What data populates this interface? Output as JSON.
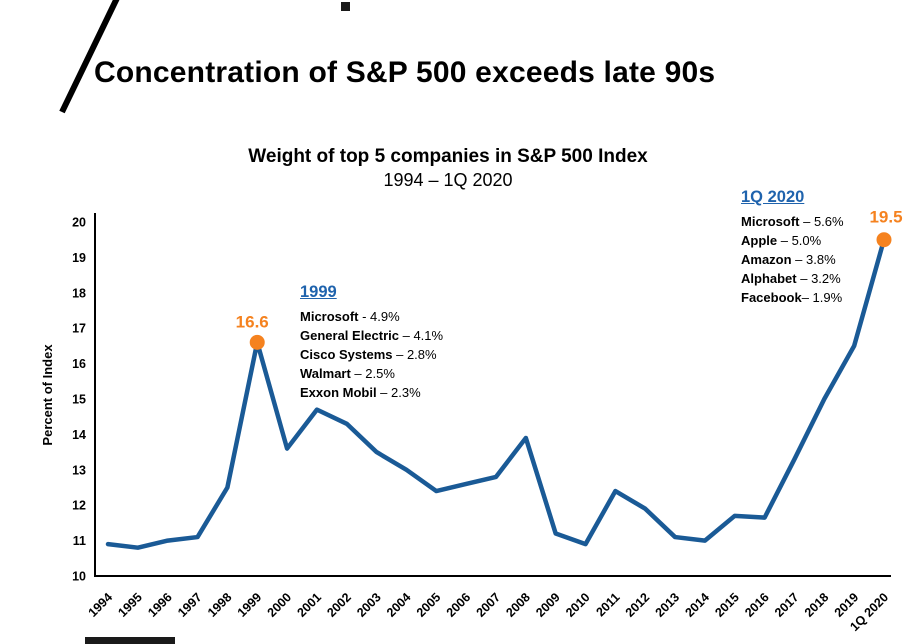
{
  "page": {
    "title": "Concentration of S&P 500 exceeds late 90s"
  },
  "chart_data": {
    "type": "line",
    "title": "Weight of top 5 companies in S&P 500 Index",
    "subtitle": "1994 – 1Q 2020",
    "ylabel": "Percent of Index",
    "ylim": [
      10,
      20
    ],
    "yticks": [
      10,
      11,
      12,
      13,
      14,
      15,
      16,
      17,
      18,
      19,
      20
    ],
    "categories": [
      "1994",
      "1995",
      "1996",
      "1997",
      "1998",
      "1999",
      "2000",
      "2001",
      "2002",
      "2003",
      "2004",
      "2005",
      "2006",
      "2007",
      "2008",
      "2009",
      "2010",
      "2011",
      "2012",
      "2013",
      "2014",
      "2015",
      "2016",
      "2017",
      "2018",
      "2019",
      "1Q 2020"
    ],
    "values": [
      10.9,
      10.8,
      11.0,
      11.1,
      12.5,
      16.6,
      13.6,
      14.7,
      14.3,
      13.5,
      13.0,
      12.4,
      12.6,
      12.8,
      13.9,
      11.2,
      10.9,
      12.4,
      11.9,
      11.1,
      11.0,
      11.7,
      11.65,
      13.3,
      15.0,
      16.5,
      19.5
    ],
    "line_color": "#1a5a96",
    "highlight_color": "#f5821f",
    "heading_color": "#1f63ad",
    "grid": "off",
    "highlights": [
      {
        "category": "1999",
        "label": "16.6"
      },
      {
        "category": "1Q 2020",
        "label": "19.5"
      }
    ],
    "annotations": [
      {
        "heading": "1999",
        "items": [
          {
            "name": "Microsoft",
            "rest": " - 4.9%"
          },
          {
            "name": "General Electric",
            "rest": " – 4.1%"
          },
          {
            "name": "Cisco Systems",
            "rest": " – 2.8%"
          },
          {
            "name": "Walmart",
            "rest": " – 2.5%"
          },
          {
            "name": "Exxon Mobil",
            "rest": " – 2.3%"
          }
        ]
      },
      {
        "heading": "1Q 2020",
        "items": [
          {
            "name": "Microsoft",
            "rest": " – 5.6%"
          },
          {
            "name": "Apple",
            "rest": " – 5.0%"
          },
          {
            "name": "Amazon",
            "rest": " – 3.8%"
          },
          {
            "name": "Alphabet",
            "rest": " – 3.2%"
          },
          {
            "name": "Facebook",
            "rest": "– 1.9%"
          }
        ]
      }
    ]
  }
}
